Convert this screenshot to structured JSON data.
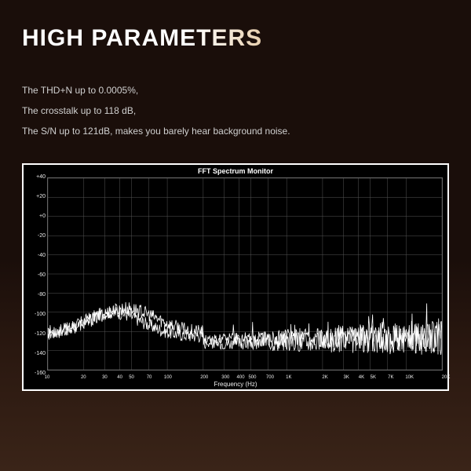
{
  "title": "HIGH PARAMETERS",
  "specs": {
    "line1": "The THD+N up to 0.0005%,",
    "line2": "The crosstalk up to 118 dB,",
    "line3": "The S/N up to 121dB, makes you barely hear background noise."
  },
  "chart": {
    "type": "line",
    "title_text": "FFT Spectrum Monitor",
    "xlabel": "Frequency (Hz)",
    "x_log": true,
    "xlim": [
      10,
      20000
    ],
    "ylim": [
      -160,
      40
    ],
    "ytick_step": 20,
    "yticks": [
      40,
      20,
      0,
      -20,
      -40,
      -60,
      -80,
      -100,
      -120,
      -140,
      -160
    ],
    "xticks": [
      10,
      20,
      30,
      40,
      50,
      70,
      100,
      200,
      300,
      400,
      500,
      700,
      1000,
      2000,
      3000,
      4000,
      5000,
      7000,
      10000,
      20000
    ],
    "xtick_labels": [
      "10",
      "20",
      "30",
      "40",
      "50",
      "70",
      "100",
      "200",
      "300",
      "400",
      "500",
      "700",
      "1K",
      "2K",
      "3K",
      "4K",
      "5K",
      "7K",
      "10K",
      "20K"
    ],
    "background_color": "#000000",
    "grid_color": "#555555",
    "trace_color": "#ffffff",
    "title_fontsize": 9,
    "label_fontsize": 8,
    "tick_fontsize": 7,
    "noise_floor_db": -135,
    "noise_amplitude_db": 25,
    "low_freq_peak_db": -100,
    "traces": 2
  },
  "colors": {
    "page_bg_top": "#1a0e0a",
    "page_bg_bottom": "#3a2418",
    "title_gradient_start": "#ffffff",
    "title_gradient_end": "#b88a5a",
    "body_text": "#d0d0d0"
  }
}
